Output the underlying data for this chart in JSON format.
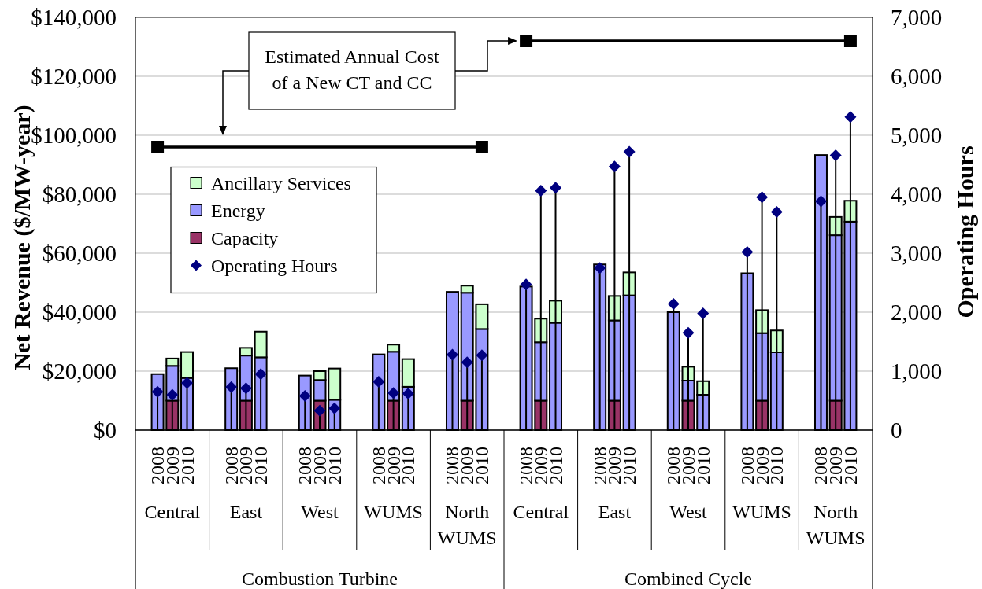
{
  "chart_data": {
    "type": "bar",
    "stacked": true,
    "categories": [
      null,
      "2008",
      "2009",
      "2010",
      null,
      null,
      "2008",
      "2009",
      "2010",
      null,
      null,
      "2008",
      "2009",
      "2010",
      null,
      null,
      "2008",
      "2009",
      "2010",
      null,
      null,
      "2008",
      "2009",
      "2010",
      null,
      null,
      "2008",
      "2009",
      "2010",
      null,
      null,
      "2008",
      "2009",
      "2010",
      null,
      null,
      "2008",
      "2009",
      "2010",
      null,
      null,
      "2008",
      "2009",
      "2010",
      null,
      null,
      "2008",
      "2009",
      "2010",
      null
    ],
    "series": [
      {
        "name": "Capacity",
        "color": "#993366",
        "values": [
          null,
          null,
          10000,
          null,
          null,
          null,
          null,
          10000,
          null,
          null,
          null,
          null,
          10000,
          null,
          null,
          null,
          null,
          10000,
          null,
          null,
          null,
          null,
          10000,
          null,
          null,
          null,
          null,
          10000,
          null,
          null,
          null,
          null,
          10000,
          null,
          null,
          null,
          null,
          10000,
          null,
          null,
          null,
          null,
          10000,
          null,
          null,
          null,
          null,
          10000,
          null,
          null
        ]
      },
      {
        "name": "Energy",
        "color": "#9999ff",
        "values": [
          null,
          19000,
          11800,
          17700,
          null,
          null,
          21000,
          15300,
          24700,
          null,
          null,
          18500,
          7000,
          10300,
          null,
          null,
          25700,
          16600,
          14700,
          null,
          null,
          46900,
          36600,
          34300,
          null,
          null,
          48700,
          19800,
          36400,
          null,
          null,
          56200,
          27200,
          45700,
          null,
          null,
          40000,
          6800,
          12000,
          null,
          null,
          53200,
          22900,
          26400,
          null,
          null,
          93300,
          56100,
          70700,
          null
        ]
      },
      {
        "name": "Ancillary Services",
        "color": "#ccffcc",
        "values": [
          null,
          null,
          2500,
          8800,
          null,
          null,
          null,
          2600,
          8700,
          null,
          null,
          null,
          3000,
          10600,
          null,
          null,
          null,
          2400,
          9400,
          null,
          null,
          null,
          2400,
          8400,
          null,
          null,
          null,
          8000,
          7500,
          null,
          null,
          null,
          8300,
          7800,
          null,
          null,
          null,
          4700,
          4600,
          null,
          null,
          null,
          7800,
          7400,
          null,
          null,
          null,
          6200,
          7100,
          null
        ]
      },
      {
        "name": "Operating Hours",
        "type": "lollipop",
        "axis": "y2",
        "color": "#000080",
        "marker": "diamond",
        "values": [
          null,
          650,
          600,
          800,
          null,
          null,
          730,
          710,
          950,
          null,
          null,
          580,
          330,
          370,
          null,
          null,
          820,
          630,
          620,
          null,
          null,
          1280,
          1150,
          1270,
          null,
          null,
          2470,
          4060,
          4110,
          null,
          null,
          2750,
          4470,
          4720,
          null,
          null,
          2140,
          1650,
          1980,
          null,
          null,
          3020,
          3950,
          3700,
          null,
          null,
          3880,
          4660,
          5310,
          null
        ]
      },
      {
        "type": "line",
        "color": "#000000",
        "values": [
          null,
          null,
          null,
          null,
          null,
          null,
          null,
          null,
          null,
          null,
          null,
          null,
          null,
          null,
          null,
          null,
          null,
          null,
          null,
          null,
          null,
          null,
          null,
          null,
          null,
          null,
          132000,
          132000,
          132000,
          132000,
          132000,
          132000,
          132000,
          132000,
          132000,
          132000,
          132000,
          132000,
          132000,
          132000,
          132000,
          132000,
          132000,
          132000,
          132000,
          132000,
          132000,
          132000,
          132000,
          null
        ]
      },
      {
        "type": "line",
        "color": "#000000",
        "values": [
          null,
          96000,
          96000,
          96000,
          96000,
          96000,
          96000,
          96000,
          96000,
          96000,
          96000,
          96000,
          96000,
          96000,
          96000,
          96000,
          96000,
          96000,
          96000,
          96000,
          96000,
          96000,
          96000,
          96000,
          null,
          null,
          null,
          null,
          null,
          null,
          null,
          null,
          null,
          null,
          null,
          null,
          null,
          null,
          null,
          null,
          null,
          null,
          null,
          null,
          null,
          null,
          null,
          null,
          null,
          null
        ]
      },
      {
        "type": "scatter",
        "color": "#000000",
        "marker": "square",
        "values": [
          null,
          96000,
          null,
          null,
          null,
          null,
          null,
          null,
          null,
          null,
          null,
          null,
          null,
          null,
          null,
          null,
          null,
          null,
          null,
          null,
          null,
          null,
          null,
          96000,
          null,
          null,
          132000,
          null,
          null,
          null,
          null,
          null,
          null,
          null,
          null,
          null,
          null,
          null,
          null,
          null,
          null,
          null,
          null,
          null,
          null,
          null,
          null,
          null,
          132000,
          null
        ]
      }
    ],
    "ylabel": "Net Revenue ($/MW-year)",
    "y2label": "Operating Hours",
    "ylim": [
      0,
      140000
    ],
    "yticks": [
      {
        "value": 0,
        "label": "$0"
      },
      {
        "value": 20000,
        "label": "$20,000"
      },
      {
        "value": 40000,
        "label": "$40,000"
      },
      {
        "value": 60000,
        "label": "$60,000"
      },
      {
        "value": 80000,
        "label": "$80,000"
      },
      {
        "value": 100000,
        "label": "$100,000"
      },
      {
        "value": 120000,
        "label": "$120,000"
      },
      {
        "value": 140000,
        "label": "$140,000"
      }
    ],
    "y2lim": [
      0,
      7000
    ],
    "y2ticks": [
      0,
      {
        "value": 1000,
        "label": "1,000"
      },
      {
        "value": 2000,
        "label": "2,000"
      },
      {
        "value": 3000,
        "label": "3,000"
      },
      {
        "value": 4000,
        "label": "4,000"
      },
      {
        "value": 5000,
        "label": "5,000"
      },
      {
        "value": 6000,
        "label": "6,000"
      },
      {
        "value": 7000,
        "label": "7,000"
      }
    ],
    "grid": "y",
    "legend": "left",
    "annotations": [
      "Estimated Annual Cost of a New CT and CC",
      "Central",
      "East",
      "West",
      "WUMS",
      "North WUMS",
      "Central",
      "East",
      "West",
      "WUMS",
      "North WUMS",
      "Combustion Turbine",
      "Combined Cycle"
    ]
  }
}
